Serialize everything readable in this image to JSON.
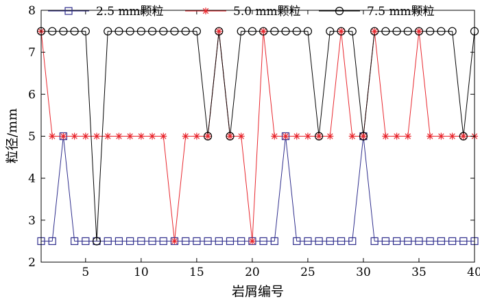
{
  "chart_data": {
    "type": "line",
    "xlabel": "岩屑编号",
    "ylabel": "粒径/mm",
    "xlim": [
      1,
      40
    ],
    "ylim": [
      2,
      8
    ],
    "x_ticks": [
      5,
      10,
      15,
      20,
      25,
      30,
      35,
      40
    ],
    "y_ticks": [
      2,
      3,
      4,
      5,
      6,
      7,
      8
    ],
    "grid": false,
    "legend_position": "top",
    "x": [
      1,
      2,
      3,
      4,
      5,
      6,
      7,
      8,
      9,
      10,
      11,
      12,
      13,
      14,
      15,
      16,
      17,
      18,
      19,
      20,
      21,
      22,
      23,
      24,
      25,
      26,
      27,
      28,
      29,
      30,
      31,
      32,
      33,
      34,
      35,
      36,
      37,
      38,
      39,
      40
    ],
    "series": [
      {
        "name": "2.5 mm颗粒",
        "color": "#2e2d8c",
        "marker": "square",
        "values": [
          2.5,
          2.5,
          5.0,
          2.5,
          2.5,
          2.5,
          2.5,
          2.5,
          2.5,
          2.5,
          2.5,
          2.5,
          2.5,
          2.5,
          2.5,
          2.5,
          2.5,
          2.5,
          2.5,
          2.5,
          2.5,
          2.5,
          5.0,
          2.5,
          2.5,
          2.5,
          2.5,
          2.5,
          2.5,
          5.0,
          2.5,
          2.5,
          2.5,
          2.5,
          2.5,
          2.5,
          2.5,
          2.5,
          2.5,
          2.5
        ]
      },
      {
        "name": "5.0 mm颗粒",
        "color": "#e8262d",
        "marker": "asterisk",
        "values": [
          7.5,
          5.0,
          5.0,
          5.0,
          5.0,
          5.0,
          5.0,
          5.0,
          5.0,
          5.0,
          5.0,
          5.0,
          2.5,
          5.0,
          5.0,
          5.0,
          7.5,
          5.0,
          5.0,
          2.5,
          7.5,
          5.0,
          5.0,
          5.0,
          5.0,
          5.0,
          5.0,
          7.5,
          5.0,
          5.0,
          7.5,
          5.0,
          5.0,
          5.0,
          7.5,
          5.0,
          5.0,
          5.0,
          5.0,
          5.0
        ]
      },
      {
        "name": "7.5 mm颗粒",
        "color": "#000000",
        "marker": "circle",
        "values": [
          7.5,
          7.5,
          7.5,
          7.5,
          7.5,
          2.5,
          7.5,
          7.5,
          7.5,
          7.5,
          7.5,
          7.5,
          7.5,
          7.5,
          7.5,
          5.0,
          7.5,
          5.0,
          7.5,
          7.5,
          7.5,
          7.5,
          7.5,
          7.5,
          7.5,
          5.0,
          7.5,
          7.5,
          7.5,
          5.0,
          7.5,
          7.5,
          7.5,
          7.5,
          7.5,
          7.5,
          7.5,
          7.5,
          5.0,
          7.5
        ]
      }
    ]
  }
}
